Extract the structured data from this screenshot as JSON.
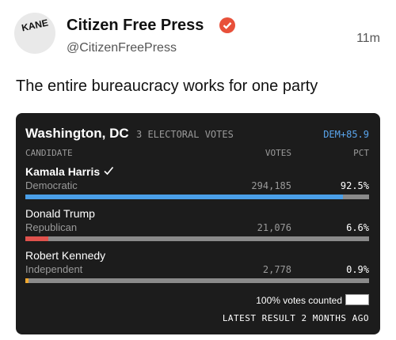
{
  "post": {
    "author": "Citizen Free Press",
    "handle": "@CitizenFreePress",
    "time": "11m",
    "avatar_text": "KANE",
    "text": "The entire bureaucracy works for one party"
  },
  "card": {
    "title": "Washington, DC",
    "subtitle": "3 ELECTORAL VOTES",
    "margin": "DEM+85.9",
    "headers": [
      "CANDIDATE",
      "VOTES",
      "PCT"
    ],
    "candidates": [
      {
        "name": "Kamala Harris",
        "party": "Democratic",
        "votes": "294,185",
        "pct": {
          "value": 92.5,
          "label": "92.5%"
        },
        "color": "#4a9fe8",
        "winner": true
      },
      {
        "name": "Donald Trump",
        "party": "Republican",
        "votes": "21,076",
        "pct": {
          "value": 6.6,
          "label": "6.6%"
        },
        "color": "#e0524d",
        "winner": false
      },
      {
        "name": "Robert Kennedy",
        "party": "Independent",
        "votes": "2,778",
        "pct": {
          "value": 0.9,
          "label": "0.9%"
        },
        "color": "#f0a830",
        "winner": false
      }
    ],
    "footer": "100% votes counted",
    "updated": "LATEST RESULT 2 MONTHS AGO"
  }
}
